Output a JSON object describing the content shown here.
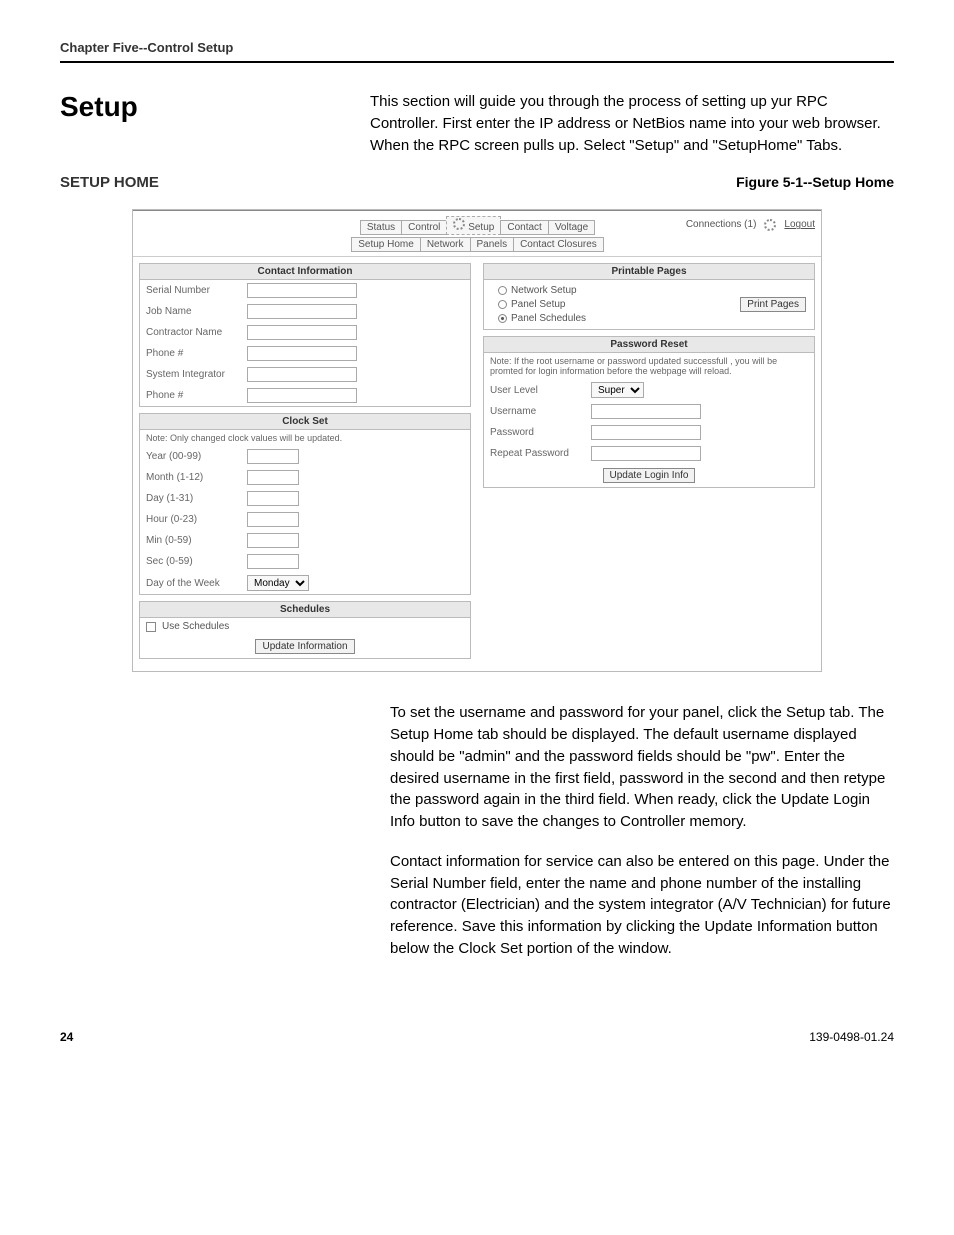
{
  "chapter_header": "Chapter Five--Control Setup",
  "setup_title": "Setup",
  "setup_intro": "This section will guide you through the process of setting up yur RPC Controller.  First enter the IP address or NetBios name into your web browser.  When the RPC screen pulls up.  Select \"Setup\" and \"SetupHome\" Tabs.",
  "subhead": "SETUP HOME",
  "figure_caption": "Figure 5-1--Setup Home",
  "ui": {
    "primary_tabs": [
      "Status",
      "Control",
      "Setup",
      "Contact",
      "Voltage"
    ],
    "secondary_tabs": [
      "Setup Home",
      "Network",
      "Panels",
      "Contact Closures"
    ],
    "connections_label": "Connections (1)",
    "logout": "Logout",
    "contact_info_title": "Contact Information",
    "contact_fields": [
      "Serial Number",
      "Job Name",
      "Contractor Name",
      "Phone #",
      "System Integrator",
      "Phone #"
    ],
    "clock_set_title": "Clock Set",
    "clock_note": "Note: Only changed clock values will be updated.",
    "clock_fields": [
      "Year (00-99)",
      "Month (1-12)",
      "Day (1-31)",
      "Hour (0-23)",
      "Min (0-59)",
      "Sec (0-59)"
    ],
    "dow_label": "Day of the Week",
    "dow_value": "Monday",
    "schedules_title": "Schedules",
    "use_schedules": "Use Schedules",
    "update_info_btn": "Update Information",
    "printable_title": "Printable Pages",
    "printable_options": [
      "Network Setup",
      "Panel Setup",
      "Panel Schedules"
    ],
    "print_btn": "Print Pages",
    "pwd_title": "Password Reset",
    "pwd_note": "Note: If the root username or password updated successfull , you will be promted for login information before the webpage will reload.",
    "user_level_label": "User Level",
    "user_level_value": "Super",
    "username_label": "Username",
    "password_label": "Password",
    "repeat_pw_label": "Repeat Password",
    "update_login_btn": "Update Login Info"
  },
  "para1": "To set the username and password for your panel, click the Setup tab. The Setup Home tab should be displayed. The default username displayed should be \"admin\" and the password fields should be \"pw\".  Enter the desired username in the first field, password in the second and then retype the password again in the third field. When ready, click the Update Login Info button to save the changes to Controller memory.",
  "para2": "Contact information for service can also be entered on this page. Under the Serial Number field, enter the name and phone number of the installing contractor (Electrician) and the system integrator (A/V Technician) for future reference. Save this information by clicking the Update Information button below the Clock Set portion of the window.",
  "page_number": "24",
  "doc_number": "139-0498-01.24",
  "colors": {
    "panel_head_bg": "#e8e8e8",
    "border": "#bbbbbb",
    "text_muted": "#666666"
  }
}
